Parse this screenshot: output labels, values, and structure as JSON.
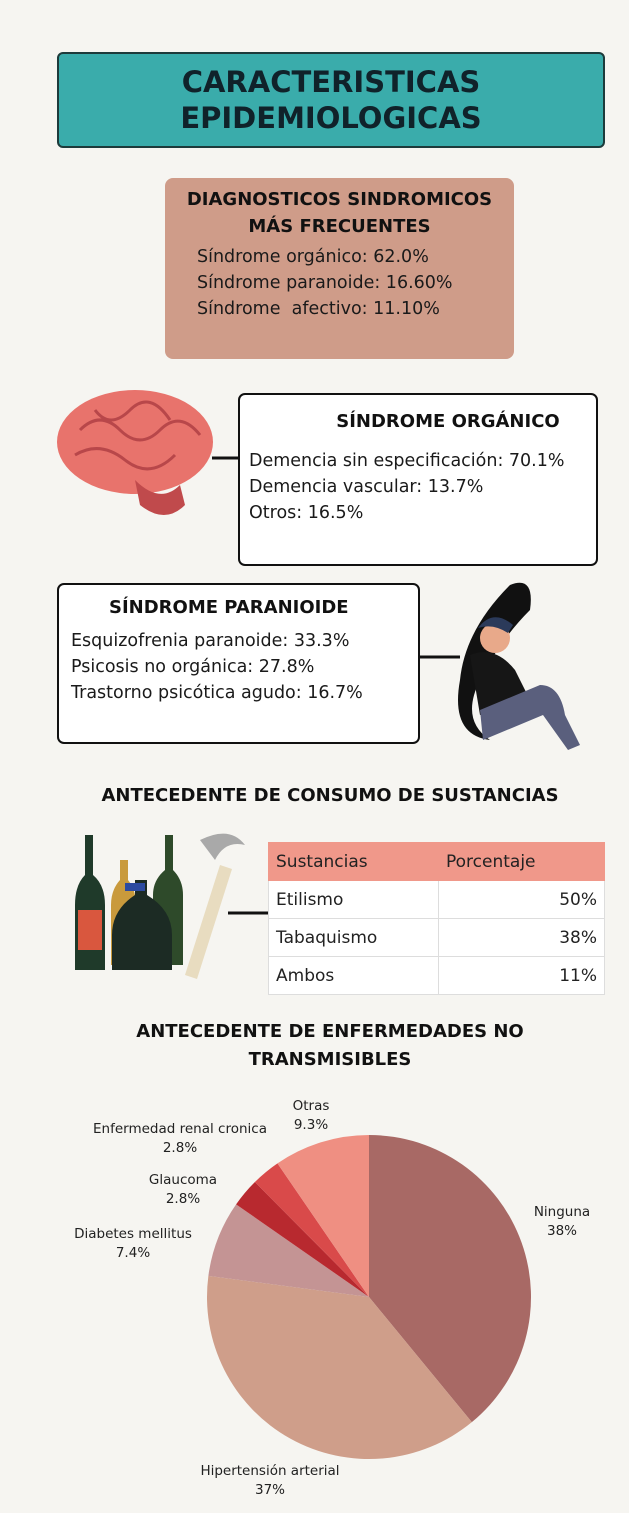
{
  "header": {
    "title": "CARACTERISTICAS EPIDEMIOLOGICAS"
  },
  "sindromicos": {
    "title": "DIAGNOSTICOS SINDROMICOS MÁS FRECUENTES",
    "items": [
      "Síndrome orgánico: 62.0%",
      "Síndrome paranoide: 16.60%",
      "Síndrome  afectivo: 11.10%"
    ]
  },
  "organico": {
    "title": "SÍNDROME ORGÁNICO",
    "items": [
      "Demencia sin especificación: 70.1%",
      "Demencia vascular: 13.7%",
      "Otros: 16.5%"
    ]
  },
  "paranoide": {
    "title": "SÍNDROME PARANIOIDE",
    "items": [
      "Esquizofrenia paranoide: 33.3%",
      "Psicosis no orgánica: 27.8%",
      "Trastorno psicótica agudo: 16.7%"
    ]
  },
  "sustancias": {
    "title": "ANTECEDENTE DE CONSUMO DE SUSTANCIAS",
    "table": {
      "header": [
        "Sustancias",
        "Porcentaje"
      ],
      "rows": [
        [
          "Etilismo",
          "50%"
        ],
        [
          "Tabaquismo",
          "38%"
        ],
        [
          "Ambos",
          "11%"
        ]
      ]
    }
  },
  "chart_data": {
    "type": "pie",
    "title": "ANTECEDENTE DE ENFERMEDADES NO TRANSMISIBLES",
    "categories": [
      "Ninguna",
      "Hipertensión arterial",
      "Diabetes mellitus",
      "Glaucoma",
      "Enfermedad renal cronica",
      "Otras"
    ],
    "values": [
      38,
      37,
      7.4,
      2.8,
      2.8,
      9.3
    ],
    "value_labels": [
      "38%",
      "37%",
      "7.4%",
      "2.8%",
      "2.8%",
      "9.3%"
    ],
    "colors": [
      "#a86965",
      "#cf9e8a",
      "#c49494",
      "#b8292f",
      "#d94a4a",
      "#ef8f82"
    ]
  }
}
